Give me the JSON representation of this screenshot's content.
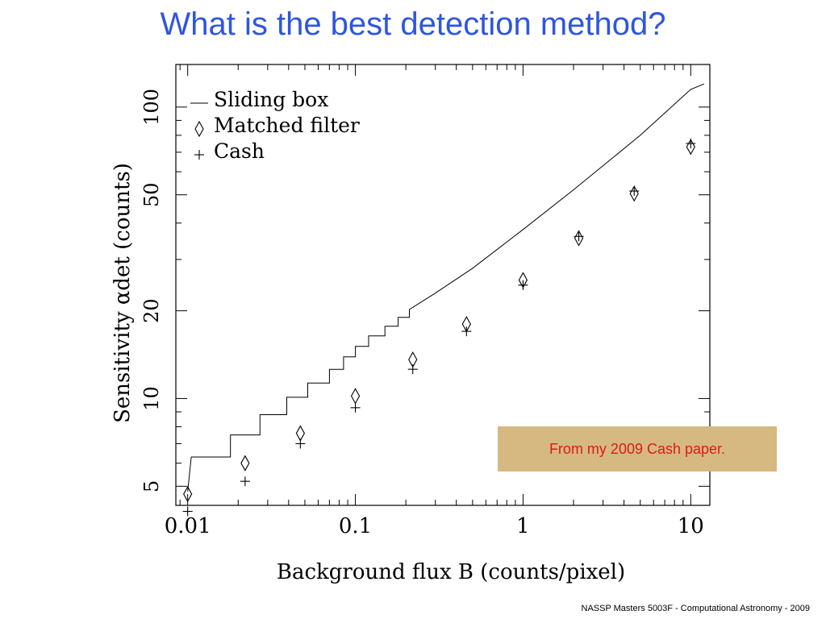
{
  "slide": {
    "title": "What is the best detection method?",
    "footer": "NASSP Masters 5003F - Computational Astronomy - 2009",
    "title_color": "#2f55e0"
  },
  "callout": {
    "text": "From my 2009 Cash paper.",
    "background": "#d5b981",
    "text_color": "#e0191b"
  },
  "chart_data": {
    "type": "scatter",
    "title": "",
    "xlabel": "Background flux B (counts/pixel)",
    "ylabel": "Sensitivity αdet (counts)",
    "xscale": "log",
    "yscale": "log",
    "xlim": [
      0.0085,
      13
    ],
    "ylim": [
      4.3,
      140
    ],
    "xticks": [
      {
        "value": 0.01,
        "label": "0.01"
      },
      {
        "value": 0.1,
        "label": "0.1"
      },
      {
        "value": 1,
        "label": "1"
      },
      {
        "value": 10,
        "label": "10"
      }
    ],
    "yticks": [
      {
        "value": 5,
        "label": "5"
      },
      {
        "value": 10,
        "label": "10"
      },
      {
        "value": 20,
        "label": "20"
      },
      {
        "value": 50,
        "label": "50"
      },
      {
        "value": 100,
        "label": "100"
      }
    ],
    "legend_position": "top-left",
    "grid": false,
    "series": [
      {
        "name": "Sliding box",
        "marker": "line",
        "points": [
          [
            0.01,
            4.8
          ],
          [
            0.0105,
            6.3
          ],
          [
            0.018,
            6.3
          ],
          [
            0.018,
            7.5
          ],
          [
            0.027,
            7.5
          ],
          [
            0.027,
            8.8
          ],
          [
            0.039,
            8.8
          ],
          [
            0.039,
            10.1
          ],
          [
            0.052,
            10.1
          ],
          [
            0.052,
            11.3
          ],
          [
            0.07,
            11.3
          ],
          [
            0.07,
            12.6
          ],
          [
            0.085,
            12.6
          ],
          [
            0.085,
            13.9
          ],
          [
            0.1,
            13.9
          ],
          [
            0.1,
            15.1
          ],
          [
            0.12,
            15.1
          ],
          [
            0.12,
            16.4
          ],
          [
            0.15,
            16.4
          ],
          [
            0.15,
            17.7
          ],
          [
            0.18,
            17.7
          ],
          [
            0.18,
            19.0
          ],
          [
            0.21,
            19.0
          ],
          [
            0.21,
            20.2
          ],
          [
            0.3,
            23
          ],
          [
            0.5,
            28
          ],
          [
            1,
            38
          ],
          [
            2,
            52
          ],
          [
            5,
            80
          ],
          [
            10,
            115
          ],
          [
            12,
            120
          ]
        ]
      },
      {
        "name": "Matched filter",
        "marker": "diamond",
        "points": [
          [
            0.01,
            4.7
          ],
          [
            0.022,
            6.0
          ],
          [
            0.047,
            7.6
          ],
          [
            0.1,
            10.2
          ],
          [
            0.22,
            13.6
          ],
          [
            0.46,
            18.0
          ],
          [
            1,
            25.5
          ],
          [
            2.15,
            35.5
          ],
          [
            4.6,
            50.5
          ],
          [
            10,
            73
          ]
        ]
      },
      {
        "name": "Cash",
        "marker": "plus",
        "points": [
          [
            0.01,
            4.1
          ],
          [
            0.022,
            5.2
          ],
          [
            0.047,
            7.0
          ],
          [
            0.1,
            9.3
          ],
          [
            0.22,
            12.6
          ],
          [
            0.46,
            17.0
          ],
          [
            1,
            24.5
          ],
          [
            2.15,
            36.0
          ],
          [
            4.6,
            51.5
          ],
          [
            10,
            75
          ]
        ]
      }
    ]
  }
}
